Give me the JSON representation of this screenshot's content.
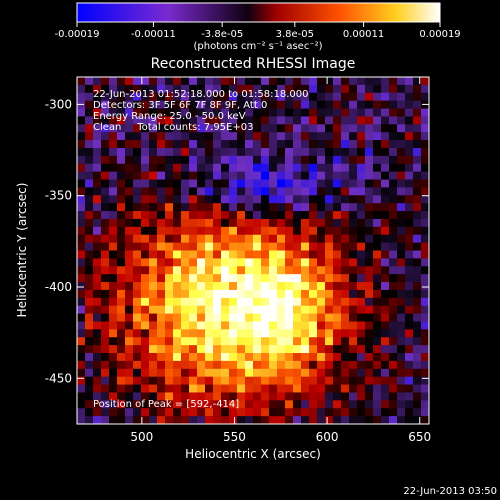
{
  "colorbar": {
    "tick_labels": [
      "-0.00019",
      "-0.00011",
      "-3.8e-05",
      "3.8e-05",
      "0.00011",
      "0.00019"
    ],
    "tick_values": [
      -0.00019,
      -0.00011,
      -3.8e-05,
      3.8e-05,
      0.00011,
      0.00019
    ],
    "unit_label": "(photons cm⁻² s⁻¹ asec⁻²)",
    "range": [
      -0.00019,
      0.00019
    ]
  },
  "chart_data": {
    "type": "heatmap",
    "title": "Reconstructed RHESSI Image",
    "xlabel": "Heliocentric X (arcsec)",
    "ylabel": "Heliocentric Y (arcsec)",
    "xlim": [
      465,
      655
    ],
    "ylim": [
      -475,
      -285
    ],
    "x_ticks": [
      500,
      550,
      600,
      650
    ],
    "y_ticks": [
      -300,
      -350,
      -400,
      -450
    ],
    "annotations": [
      "22-Jun-2013 01:52:18.000 to 01:58:18.000",
      "Detectors: 3F 5F 6F 7F 8F 9F, Att 0",
      "Energy Range: 25.0 - 50.0 keV",
      "Clean     Total counts: 7.95E+03"
    ],
    "peak_label": "Position of Peak = [592,-414]",
    "peak": [
      592,
      -414
    ],
    "bright_region_center": [
      545,
      -410
    ],
    "colormap": [
      "#0000ff",
      "#7030c0",
      "#000000",
      "#c00000",
      "#ff6000",
      "#ffff40",
      "#ffffff"
    ]
  },
  "footer": {
    "timestamp": "22-Jun-2013 03:50"
  }
}
